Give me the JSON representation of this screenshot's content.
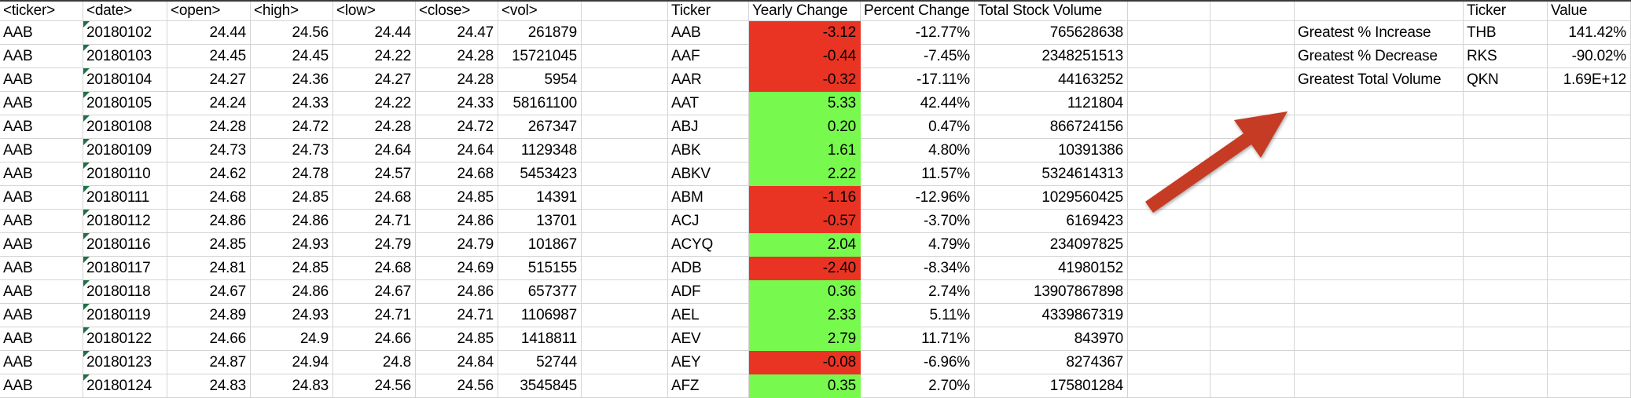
{
  "colors": {
    "negative_fill": "#e93323",
    "positive_fill": "#78f94e",
    "arrow": "#c63b24",
    "error_indicator": "#1f7145",
    "gridline": "#d4d4d4"
  },
  "annotation": {
    "icon": "arrow-up-right-icon"
  },
  "stock_table": {
    "headers": [
      "<ticker>",
      "<date>",
      "<open>",
      "<high>",
      "<low>",
      "<close>",
      "<vol>"
    ],
    "rows": [
      {
        "ticker": "AAB",
        "date": "20180102",
        "open": "24.44",
        "high": "24.56",
        "low": "24.44",
        "close": "24.47",
        "vol": "261879"
      },
      {
        "ticker": "AAB",
        "date": "20180103",
        "open": "24.45",
        "high": "24.45",
        "low": "24.22",
        "close": "24.28",
        "vol": "15721045"
      },
      {
        "ticker": "AAB",
        "date": "20180104",
        "open": "24.27",
        "high": "24.36",
        "low": "24.27",
        "close": "24.28",
        "vol": "5954"
      },
      {
        "ticker": "AAB",
        "date": "20180105",
        "open": "24.24",
        "high": "24.33",
        "low": "24.22",
        "close": "24.33",
        "vol": "58161100"
      },
      {
        "ticker": "AAB",
        "date": "20180108",
        "open": "24.28",
        "high": "24.72",
        "low": "24.28",
        "close": "24.72",
        "vol": "267347"
      },
      {
        "ticker": "AAB",
        "date": "20180109",
        "open": "24.73",
        "high": "24.73",
        "low": "24.64",
        "close": "24.64",
        "vol": "1129348"
      },
      {
        "ticker": "AAB",
        "date": "20180110",
        "open": "24.62",
        "high": "24.78",
        "low": "24.57",
        "close": "24.68",
        "vol": "5453423"
      },
      {
        "ticker": "AAB",
        "date": "20180111",
        "open": "24.68",
        "high": "24.85",
        "low": "24.68",
        "close": "24.85",
        "vol": "14391"
      },
      {
        "ticker": "AAB",
        "date": "20180112",
        "open": "24.86",
        "high": "24.86",
        "low": "24.71",
        "close": "24.86",
        "vol": "13701"
      },
      {
        "ticker": "AAB",
        "date": "20180116",
        "open": "24.85",
        "high": "24.93",
        "low": "24.79",
        "close": "24.79",
        "vol": "101867"
      },
      {
        "ticker": "AAB",
        "date": "20180117",
        "open": "24.81",
        "high": "24.85",
        "low": "24.68",
        "close": "24.69",
        "vol": "515155"
      },
      {
        "ticker": "AAB",
        "date": "20180118",
        "open": "24.67",
        "high": "24.86",
        "low": "24.67",
        "close": "24.86",
        "vol": "657377"
      },
      {
        "ticker": "AAB",
        "date": "20180119",
        "open": "24.89",
        "high": "24.93",
        "low": "24.71",
        "close": "24.71",
        "vol": "1106987"
      },
      {
        "ticker": "AAB",
        "date": "20180122",
        "open": "24.66",
        "high": "24.9",
        "low": "24.66",
        "close": "24.85",
        "vol": "1418811"
      },
      {
        "ticker": "AAB",
        "date": "20180123",
        "open": "24.87",
        "high": "24.94",
        "low": "24.8",
        "close": "24.84",
        "vol": "52744"
      },
      {
        "ticker": "AAB",
        "date": "20180124",
        "open": "24.83",
        "high": "24.83",
        "low": "24.56",
        "close": "24.56",
        "vol": "3545845"
      }
    ]
  },
  "analysis_table": {
    "headers": [
      "Ticker",
      "Yearly Change",
      "Percent Change",
      "Total Stock Volume"
    ],
    "rows": [
      {
        "ticker": "AAB",
        "yearly_change": "-3.12",
        "percent_change": "-12.77%",
        "total_volume": "765628638",
        "trend": "negative"
      },
      {
        "ticker": "AAF",
        "yearly_change": "-0.44",
        "percent_change": "-7.45%",
        "total_volume": "2348251513",
        "trend": "negative"
      },
      {
        "ticker": "AAR",
        "yearly_change": "-0.32",
        "percent_change": "-17.11%",
        "total_volume": "44163252",
        "trend": "negative"
      },
      {
        "ticker": "AAT",
        "yearly_change": "5.33",
        "percent_change": "42.44%",
        "total_volume": "1121804",
        "trend": "positive"
      },
      {
        "ticker": "ABJ",
        "yearly_change": "0.20",
        "percent_change": "0.47%",
        "total_volume": "866724156",
        "trend": "positive"
      },
      {
        "ticker": "ABK",
        "yearly_change": "1.61",
        "percent_change": "4.80%",
        "total_volume": "10391386",
        "trend": "positive"
      },
      {
        "ticker": "ABKV",
        "yearly_change": "2.22",
        "percent_change": "11.57%",
        "total_volume": "5324614313",
        "trend": "positive"
      },
      {
        "ticker": "ABM",
        "yearly_change": "-1.16",
        "percent_change": "-12.96%",
        "total_volume": "1029560425",
        "trend": "negative"
      },
      {
        "ticker": "ACJ",
        "yearly_change": "-0.57",
        "percent_change": "-3.70%",
        "total_volume": "6169423",
        "trend": "negative"
      },
      {
        "ticker": "ACYQ",
        "yearly_change": "2.04",
        "percent_change": "4.79%",
        "total_volume": "234097825",
        "trend": "positive"
      },
      {
        "ticker": "ADB",
        "yearly_change": "-2.40",
        "percent_change": "-8.34%",
        "total_volume": "41980152",
        "trend": "negative"
      },
      {
        "ticker": "ADF",
        "yearly_change": "0.36",
        "percent_change": "2.74%",
        "total_volume": "13907867898",
        "trend": "positive"
      },
      {
        "ticker": "AEL",
        "yearly_change": "2.33",
        "percent_change": "5.11%",
        "total_volume": "4339867319",
        "trend": "positive"
      },
      {
        "ticker": "AEV",
        "yearly_change": "2.79",
        "percent_change": "11.71%",
        "total_volume": "843970",
        "trend": "positive"
      },
      {
        "ticker": "AEY",
        "yearly_change": "-0.08",
        "percent_change": "-6.96%",
        "total_volume": "8274367",
        "trend": "negative"
      },
      {
        "ticker": "AFZ",
        "yearly_change": "0.35",
        "percent_change": "2.70%",
        "total_volume": "175801284",
        "trend": "positive"
      }
    ]
  },
  "summary_table": {
    "headers": {
      "ticker": "Ticker",
      "value": "Value"
    },
    "rows": [
      {
        "label": "Greatest % Increase",
        "ticker": "THB",
        "value": "141.42%"
      },
      {
        "label": "Greatest % Decrease",
        "ticker": "RKS",
        "value": "-90.02%"
      },
      {
        "label": "Greatest Total Volume",
        "ticker": "QKN",
        "value": "1.69E+12"
      }
    ]
  }
}
